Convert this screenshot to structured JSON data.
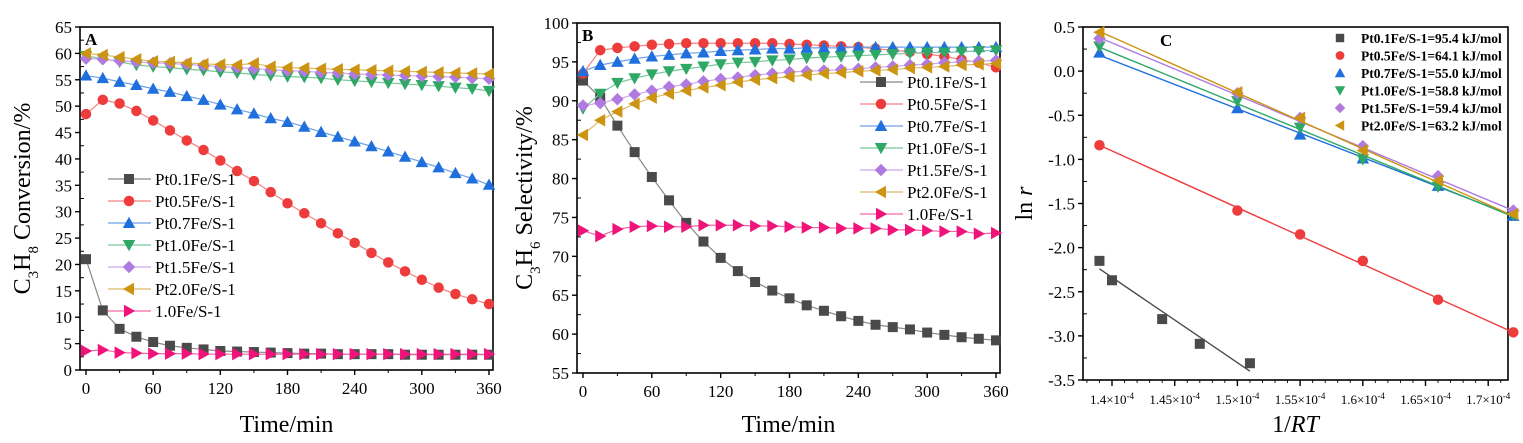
{
  "figure": {
    "panels": [
      "A",
      "B",
      "C"
    ]
  },
  "colors": {
    "Pt0.1Fe/S-1": "#4a4a4a",
    "Pt0.5Fe/S-1": "#ee3b3b",
    "Pt0.7Fe/S-1": "#1f6fdc",
    "Pt1.0Fe/S-1": "#2fa865",
    "Pt1.5Fe/S-1": "#b07ae0",
    "Pt2.0Fe/S-1": "#cc9410",
    "1.0Fe/S-1": "#f0147a"
  },
  "chart_data": [
    {
      "type": "line",
      "panel": "A",
      "xlabel": "Time/min",
      "ylabel_parts": [
        "C",
        "3",
        "H",
        "8",
        " Conversion/%"
      ],
      "xlim": [
        -5,
        365
      ],
      "ylim": [
        0,
        65
      ],
      "xticks": [
        0,
        60,
        120,
        180,
        240,
        300,
        360
      ],
      "yticks": [
        0,
        5,
        10,
        15,
        20,
        25,
        30,
        35,
        40,
        45,
        50,
        55,
        60,
        65
      ],
      "legend_position": "center-left",
      "grid": false,
      "x": [
        0,
        15,
        30,
        45,
        60,
        75,
        90,
        105,
        120,
        135,
        150,
        165,
        180,
        195,
        210,
        225,
        240,
        255,
        270,
        285,
        300,
        315,
        330,
        345,
        360
      ],
      "series": [
        {
          "name": "Pt0.1Fe/S-1",
          "marker": "square",
          "values": [
            21.0,
            11.3,
            7.8,
            6.3,
            5.3,
            4.6,
            4.2,
            3.9,
            3.6,
            3.5,
            3.4,
            3.3,
            3.2,
            3.1,
            3.1,
            3.0,
            3.0,
            3.0,
            3.0,
            2.9,
            2.9,
            2.9,
            2.9,
            2.9,
            2.9
          ]
        },
        {
          "name": "Pt0.5Fe/S-1",
          "marker": "circle",
          "values": [
            48.5,
            51.2,
            50.5,
            49.1,
            47.3,
            45.4,
            43.5,
            41.7,
            39.7,
            37.7,
            35.8,
            33.7,
            31.6,
            29.7,
            27.8,
            25.9,
            24.1,
            22.2,
            20.4,
            18.7,
            17.1,
            15.6,
            14.4,
            13.4,
            12.5
          ]
        },
        {
          "name": "Pt0.7Fe/S-1",
          "marker": "triangle-up",
          "values": [
            55.8,
            55.3,
            54.6,
            54.0,
            53.3,
            52.7,
            51.9,
            51.2,
            50.3,
            49.4,
            48.6,
            47.7,
            47.0,
            46.1,
            45.1,
            44.2,
            43.3,
            42.4,
            41.4,
            40.4,
            39.4,
            38.4,
            37.3,
            36.3,
            35.1
          ]
        },
        {
          "name": "Pt1.0Fe/S-1",
          "marker": "triangle-down",
          "values": [
            59.5,
            59.0,
            58.4,
            57.8,
            57.5,
            57.3,
            57.0,
            56.8,
            56.5,
            56.3,
            56.0,
            55.8,
            55.6,
            55.5,
            55.3,
            55.0,
            54.8,
            54.6,
            54.4,
            54.2,
            54.0,
            53.8,
            53.5,
            53.3,
            52.9
          ]
        },
        {
          "name": "Pt1.5Fe/S-1",
          "marker": "diamond",
          "values": [
            59.0,
            58.9,
            58.6,
            58.4,
            58.2,
            58.1,
            57.9,
            57.7,
            57.5,
            57.3,
            57.1,
            56.9,
            56.7,
            56.6,
            56.4,
            56.3,
            56.1,
            56.0,
            55.9,
            55.8,
            55.7,
            55.6,
            55.5,
            55.3,
            55.2
          ]
        },
        {
          "name": "Pt2.0Fe/S-1",
          "marker": "triangle-left",
          "values": [
            60.0,
            59.7,
            59.3,
            58.9,
            58.5,
            58.4,
            58.2,
            58.0,
            57.9,
            57.8,
            58.1,
            57.5,
            57.3,
            57.2,
            57.1,
            57.0,
            56.9,
            56.8,
            56.7,
            56.6,
            56.5,
            56.4,
            56.3,
            56.2,
            56.1
          ]
        },
        {
          "name": "1.0Fe/S-1",
          "marker": "triangle-right",
          "values": [
            3.6,
            3.8,
            3.3,
            3.2,
            3.1,
            3.1,
            3.1,
            3.0,
            3.0,
            3.0,
            3.0,
            3.0,
            3.0,
            3.0,
            3.0,
            3.0,
            3.0,
            3.0,
            3.0,
            3.0,
            3.0,
            3.0,
            3.0,
            3.0,
            3.0
          ]
        }
      ]
    },
    {
      "type": "line",
      "panel": "B",
      "xlabel": "Time/min",
      "ylabel_parts": [
        "C",
        "3",
        "H",
        "6",
        " Selectivity/%"
      ],
      "xlim": [
        -5,
        365
      ],
      "ylim": [
        55,
        100
      ],
      "xticks": [
        0,
        60,
        120,
        180,
        240,
        300,
        360
      ],
      "yticks": [
        55,
        60,
        65,
        70,
        75,
        80,
        85,
        90,
        95,
        100
      ],
      "legend_position": "right",
      "grid": false,
      "x": [
        0,
        15,
        30,
        45,
        60,
        75,
        90,
        105,
        120,
        135,
        150,
        165,
        180,
        195,
        210,
        225,
        240,
        255,
        270,
        285,
        300,
        315,
        330,
        345,
        360
      ],
      "series": [
        {
          "name": "Pt0.1Fe/S-1",
          "marker": "square",
          "values": [
            92.6,
            90.4,
            86.8,
            83.4,
            80.2,
            77.2,
            74.3,
            71.9,
            69.8,
            68.1,
            66.7,
            65.6,
            64.6,
            63.7,
            63.0,
            62.3,
            61.7,
            61.2,
            60.9,
            60.6,
            60.2,
            59.9,
            59.6,
            59.4,
            59.2
          ]
        },
        {
          "name": "Pt0.5Fe/S-1",
          "marker": "circle",
          "values": [
            93.5,
            96.5,
            96.8,
            97.0,
            97.2,
            97.3,
            97.4,
            97.4,
            97.4,
            97.4,
            97.4,
            97.4,
            97.3,
            97.2,
            97.1,
            97.0,
            96.9,
            96.7,
            96.5,
            96.3,
            96.0,
            95.7,
            95.3,
            94.9,
            94.3
          ]
        },
        {
          "name": "Pt0.7Fe/S-1",
          "marker": "triangle-up",
          "values": [
            93.8,
            94.6,
            95.0,
            95.4,
            95.7,
            95.9,
            96.1,
            96.2,
            96.4,
            96.5,
            96.6,
            96.7,
            96.7,
            96.8,
            96.8,
            96.8,
            96.9,
            96.9,
            96.9,
            96.9,
            96.9,
            96.9,
            96.9,
            96.9,
            96.9
          ]
        },
        {
          "name": "Pt1.0Fe/S-1",
          "marker": "triangle-down",
          "values": [
            89.0,
            90.9,
            92.3,
            92.9,
            93.4,
            93.8,
            94.1,
            94.4,
            94.7,
            94.9,
            95.0,
            95.2,
            95.3,
            95.5,
            95.6,
            95.7,
            95.8,
            95.9,
            96.0,
            96.1,
            96.2,
            96.2,
            96.3,
            96.4,
            96.5
          ]
        },
        {
          "name": "Pt1.5Fe/S-1",
          "marker": "diamond",
          "values": [
            89.4,
            89.7,
            90.2,
            90.8,
            91.3,
            91.8,
            92.1,
            92.5,
            92.8,
            93.0,
            93.3,
            93.5,
            93.7,
            93.8,
            93.9,
            94.0,
            94.1,
            94.3,
            94.4,
            94.6,
            94.7,
            94.9,
            95.0,
            95.1,
            95.2
          ]
        },
        {
          "name": "Pt2.0Fe/S-1",
          "marker": "triangle-left",
          "values": [
            85.6,
            87.5,
            88.6,
            89.6,
            90.4,
            90.9,
            91.3,
            91.7,
            92.0,
            92.4,
            92.7,
            92.9,
            93.1,
            93.3,
            93.5,
            93.6,
            93.8,
            93.9,
            94.0,
            94.2,
            94.3,
            94.4,
            94.6,
            94.7,
            94.8
          ]
        },
        {
          "name": "1.0Fe/S-1",
          "marker": "triangle-right",
          "values": [
            73.3,
            72.6,
            73.5,
            73.8,
            73.9,
            73.8,
            73.8,
            74.0,
            74.0,
            74.0,
            73.9,
            73.9,
            73.8,
            73.7,
            73.7,
            73.6,
            73.6,
            73.6,
            73.4,
            73.4,
            73.3,
            73.2,
            73.2,
            72.9,
            73.0
          ]
        }
      ]
    },
    {
      "type": "scatter",
      "panel": "C",
      "xlabel_parts": [
        "1/",
        "RT"
      ],
      "ylabel_parts": [
        "ln ",
        "r"
      ],
      "xlim": [
        0.00013775,
        0.0001735
      ],
      "ylim": [
        -3.5,
        0.5
      ],
      "xticks": [
        0.00014,
        0.000145,
        0.00015,
        0.000155,
        0.00016,
        0.000165,
        0.00017
      ],
      "xtick_labels": [
        [
          "1.4",
          "-4"
        ],
        [
          "1.45",
          "-4"
        ],
        [
          "1.5",
          "-4"
        ],
        [
          "1.55",
          "-4"
        ],
        [
          "1.6",
          "-4"
        ],
        [
          "1.65",
          "-4"
        ],
        [
          "1.7",
          "-4"
        ]
      ],
      "yticks": [
        -3.5,
        -3.0,
        -2.5,
        -2.0,
        -1.5,
        -1.0,
        -0.5,
        0.0,
        0.5
      ],
      "ytick_labels": [
        "-3.5",
        "-3.0",
        "-2.5",
        "-2.0",
        "-1.5",
        "-1.0",
        "-0.5",
        "0.0",
        "0.5"
      ],
      "legend_position": "top-right",
      "grid": false,
      "series": [
        {
          "name": "Pt0.1Fe/S-1",
          "label": "Pt0.1Fe/S-1=95.4 kJ/mol",
          "marker": "square",
          "x": [
            0.000139,
            0.00014,
            0.000144,
            0.000147,
            0.000151
          ],
          "y": [
            -2.15,
            -2.37,
            -2.81,
            -3.09,
            -3.31
          ],
          "fit": [
            [
              0.000139,
              -2.24
            ],
            [
              0.000151,
              -3.4
            ]
          ]
        },
        {
          "name": "Pt0.5Fe/S-1",
          "label": "Pt0.5Fe/S-1=64.1 kJ/mol",
          "marker": "circle",
          "x": [
            0.000139,
            0.00015,
            0.000155,
            0.00016,
            0.000166,
            0.000172
          ],
          "y": [
            -0.84,
            -1.58,
            -1.85,
            -2.15,
            -2.59,
            -2.96
          ],
          "fit": [
            [
              0.000139,
              -0.84
            ],
            [
              0.000172,
              -2.96
            ]
          ]
        },
        {
          "name": "Pt0.7Fe/S-1",
          "label": "Pt0.7Fe/S-1=55.0 kJ/mol",
          "marker": "triangle-up",
          "x": [
            0.000139,
            0.00015,
            0.000155,
            0.00016,
            0.000166,
            0.000172
          ],
          "y": [
            0.21,
            -0.42,
            -0.72,
            -0.99,
            -1.3,
            -1.64
          ],
          "fit": [
            [
              0.000139,
              0.18
            ],
            [
              0.000172,
              -1.64
            ]
          ]
        },
        {
          "name": "Pt1.0Fe/S-1",
          "label": "Pt1.0Fe/S-1=58.8 kJ/mol",
          "marker": "triangle-down",
          "x": [
            0.000139,
            0.00015,
            0.000155,
            0.00016,
            0.000166,
            0.000172
          ],
          "y": [
            0.28,
            -0.34,
            -0.64,
            -1.0,
            -1.31,
            -1.63
          ],
          "fit": [
            [
              0.000139,
              0.27
            ],
            [
              0.000172,
              -1.65
            ]
          ]
        },
        {
          "name": "Pt1.5Fe/S-1",
          "label": "Pt1.5Fe/S-1=59.4 kJ/mol",
          "marker": "diamond",
          "x": [
            0.000139,
            0.00015,
            0.000155,
            0.00016,
            0.000166,
            0.000172
          ],
          "y": [
            0.37,
            -0.25,
            -0.53,
            -0.85,
            -1.19,
            -1.58
          ],
          "fit": [
            [
              0.000139,
              0.38
            ],
            [
              0.000172,
              -1.58
            ]
          ]
        },
        {
          "name": "Pt2.0Fe/S-1",
          "label": "Pt2.0Fe/S-1=63.2 kJ/mol",
          "marker": "triangle-left",
          "x": [
            0.000139,
            0.00015,
            0.000155,
            0.00016,
            0.000166,
            0.000172
          ],
          "y": [
            0.44,
            -0.24,
            -0.53,
            -0.9,
            -1.24,
            -1.62
          ],
          "fit": [
            [
              0.000139,
              0.45
            ],
            [
              0.000172,
              -1.64
            ]
          ]
        }
      ]
    }
  ]
}
